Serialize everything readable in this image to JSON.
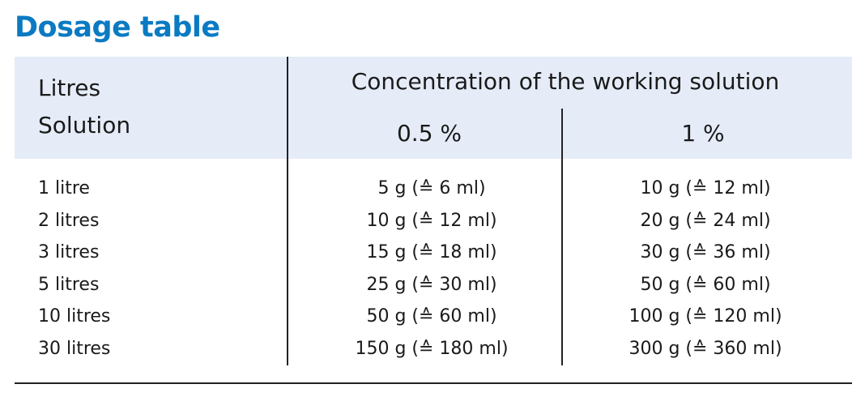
{
  "title": "Dosage table",
  "table": {
    "corner": [
      "Litres",
      "Solution"
    ],
    "group_header": "Concentration of the working solution",
    "columns": [
      "0.5 %",
      "1 %"
    ],
    "rows": [
      [
        "1 litre",
        "5 g (≙ 6 ml)",
        "10 g (≙ 12 ml)"
      ],
      [
        "2 litres",
        "10 g (≙ 12 ml)",
        "20 g (≙ 24 ml)"
      ],
      [
        "3 litres",
        "15 g (≙ 18 ml)",
        "30 g (≙ 36 ml)"
      ],
      [
        "5 litres",
        "25 g (≙ 30 ml)",
        "50 g (≙ 60 ml)"
      ],
      [
        "10 litres",
        "50 g (≙ 60 ml)",
        "100 g (≙ 120 ml)"
      ],
      [
        "30 litres",
        "150 g (≙ 180 ml)",
        "300 g (≙ 360 ml)"
      ]
    ]
  }
}
